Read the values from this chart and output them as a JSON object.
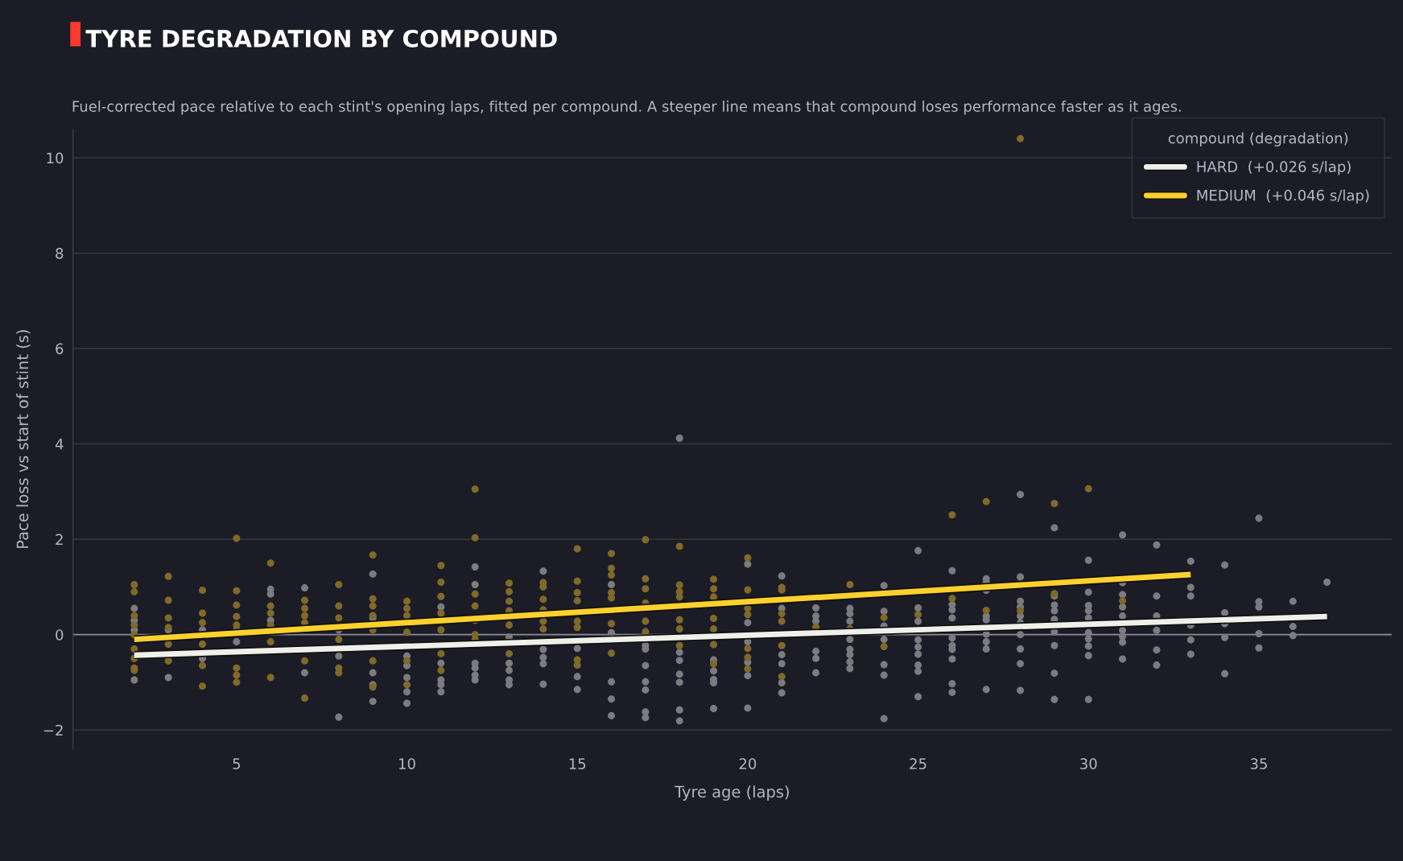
{
  "chart_data": {
    "type": "scatter",
    "title": "TYRE DEGRADATION BY COMPOUND",
    "subtitle": "Fuel-corrected pace relative to each stint's opening laps, fitted per compound. A steeper line means that compound loses performance faster as it ages.",
    "xlabel": "Tyre age (laps)",
    "ylabel": "Pace loss vs start of stint (s)",
    "legend_title": "compound (degradation)",
    "xlim": [
      0.2,
      38.9
    ],
    "ylim": [
      -2.4,
      10.6
    ],
    "xticks": [
      5,
      10,
      15,
      20,
      25,
      30,
      35
    ],
    "yticks": [
      {
        "value": -2,
        "label": "−2"
      },
      0,
      2,
      4,
      6,
      8,
      10
    ],
    "grid": "y",
    "legend": "top right",
    "ref_lines": [
      {
        "axis": "y",
        "value": 0,
        "color": "#8a8a95"
      }
    ],
    "series": [
      {
        "marker": "circle",
        "color": "#7b7b80",
        "x": [
          2,
          2,
          2,
          2,
          3,
          3,
          4,
          4,
          5,
          5,
          6,
          6,
          6,
          7,
          7,
          8,
          8,
          8,
          9,
          9,
          9,
          9,
          9,
          10,
          10,
          10,
          10,
          10,
          11,
          11,
          11,
          11,
          11,
          12,
          12,
          12,
          12,
          12,
          12,
          13,
          13,
          13,
          13,
          13,
          14,
          14,
          14,
          14,
          14,
          15,
          15,
          15,
          16,
          16,
          16,
          16,
          16,
          17,
          17,
          17,
          17,
          17,
          17,
          17,
          18,
          18,
          18,
          18,
          18,
          18,
          18,
          19,
          19,
          19,
          19,
          19,
          20,
          20,
          20,
          20,
          20,
          20,
          21,
          21,
          21,
          21,
          21,
          21,
          22,
          22,
          22,
          22,
          22,
          22,
          23,
          23,
          23,
          23,
          23,
          23,
          23,
          23,
          24,
          24,
          24,
          24,
          24,
          24,
          24,
          25,
          25,
          25,
          25,
          25,
          25,
          25,
          25,
          25,
          26,
          26,
          26,
          26,
          26,
          26,
          26,
          26,
          26,
          26,
          27,
          27,
          27,
          27,
          27,
          27,
          27,
          27,
          27,
          28,
          28,
          28,
          28,
          28,
          28,
          28,
          28,
          28,
          28,
          29,
          29,
          29,
          29,
          29,
          29,
          29,
          29,
          29,
          30,
          30,
          30,
          30,
          30,
          30,
          30,
          30,
          30,
          30,
          31,
          31,
          31,
          31,
          31,
          31,
          31,
          31,
          31,
          32,
          32,
          32,
          32,
          32,
          32,
          33,
          33,
          33,
          33,
          33,
          33,
          34,
          34,
          34,
          34,
          34,
          35,
          35,
          35,
          35,
          35,
          36,
          36,
          36,
          37
        ],
        "values": [
          0.55,
          0.3,
          0.1,
          -0.95,
          0.1,
          -0.9,
          0.1,
          -0.5,
          0.1,
          -0.15,
          0.95,
          0.85,
          0.3,
          0.98,
          -0.8,
          0.1,
          -0.45,
          -1.73,
          1.27,
          0.35,
          -0.8,
          -1.05,
          -1.4,
          -0.45,
          -0.65,
          -0.9,
          -1.2,
          -1.44,
          0.58,
          -0.6,
          -0.95,
          -1.05,
          -1.2,
          1.42,
          1.05,
          -0.6,
          -0.7,
          -0.85,
          -0.95,
          -0.05,
          -0.6,
          -0.75,
          -0.95,
          -1.05,
          1.33,
          -0.31,
          -0.48,
          -0.61,
          -1.04,
          -0.29,
          -0.88,
          -1.15,
          1.05,
          0.04,
          -0.99,
          -1.35,
          -1.7,
          -0.23,
          -0.3,
          -0.65,
          -0.99,
          -1.16,
          -1.62,
          -1.74,
          4.12,
          -0.37,
          -0.54,
          -0.83,
          -1.0,
          -1.58,
          -1.81,
          -0.53,
          -0.76,
          -0.94,
          -1.01,
          -1.55,
          1.48,
          0.25,
          -0.15,
          -0.58,
          -0.86,
          -1.54,
          1.23,
          0.55,
          -0.42,
          -0.61,
          -1.01,
          -1.22,
          0.56,
          0.39,
          0.28,
          -0.35,
          -0.5,
          -0.8,
          0.55,
          0.44,
          0.28,
          -0.1,
          -0.31,
          -0.42,
          -0.57,
          -0.71,
          1.03,
          0.49,
          0.18,
          -0.1,
          -0.63,
          -0.85,
          -1.76,
          1.76,
          0.56,
          0.28,
          -0.11,
          -0.26,
          -0.41,
          -0.64,
          -0.77,
          -1.3,
          1.34,
          0.63,
          0.52,
          0.35,
          -0.07,
          -0.23,
          -0.31,
          -0.51,
          -1.03,
          -1.21,
          1.17,
          1.09,
          0.93,
          0.39,
          0.31,
          0.01,
          -0.15,
          -0.3,
          -1.15,
          2.94,
          1.21,
          0.7,
          0.58,
          0.39,
          0.25,
          0.0,
          -0.3,
          -0.61,
          -1.17,
          2.24,
          0.81,
          0.62,
          0.5,
          0.32,
          0.06,
          -0.23,
          -0.81,
          -1.36,
          1.56,
          0.89,
          0.61,
          0.5,
          0.35,
          0.04,
          -0.09,
          -0.24,
          -0.44,
          -1.36,
          2.09,
          1.09,
          0.84,
          0.58,
          0.39,
          0.09,
          -0.04,
          -0.16,
          -0.51,
          1.88,
          0.81,
          0.39,
          0.09,
          -0.32,
          -0.64,
          1.54,
          0.99,
          0.81,
          0.2,
          -0.11,
          -0.41,
          1.46,
          0.46,
          0.23,
          -0.06,
          -0.82,
          2.44,
          0.69,
          0.58,
          0.02,
          -0.28,
          0.7,
          0.17,
          -0.02,
          1.1
        ]
      },
      {
        "marker": "circle",
        "color": "#7f6a2a",
        "x": [
          2,
          2,
          2,
          2,
          2,
          2,
          2,
          2,
          2,
          3,
          3,
          3,
          3,
          3,
          3,
          4,
          4,
          4,
          4,
          4,
          4,
          5,
          5,
          5,
          5,
          5,
          5,
          5,
          5,
          6,
          6,
          6,
          6,
          6,
          6,
          7,
          7,
          7,
          7,
          7,
          7,
          8,
          8,
          8,
          8,
          8,
          8,
          9,
          9,
          9,
          9,
          9,
          9,
          9,
          10,
          10,
          10,
          10,
          10,
          10,
          11,
          11,
          11,
          11,
          11,
          11,
          11,
          12,
          12,
          12,
          12,
          12,
          12,
          12,
          13,
          13,
          13,
          13,
          13,
          13,
          14,
          14,
          14,
          14,
          14,
          14,
          15,
          15,
          15,
          15,
          15,
          15,
          15,
          15,
          16,
          16,
          16,
          16,
          16,
          16,
          16,
          17,
          17,
          17,
          17,
          17,
          17,
          18,
          18,
          18,
          18,
          18,
          18,
          18,
          19,
          19,
          19,
          19,
          19,
          19,
          19,
          20,
          20,
          20,
          20,
          20,
          20,
          20,
          21,
          21,
          21,
          21,
          21,
          21,
          22,
          23,
          23,
          24,
          24,
          25,
          26,
          26,
          27,
          27,
          28,
          28,
          29,
          29,
          30,
          31
        ],
        "values": [
          1.05,
          0.9,
          0.4,
          0.2,
          0.0,
          -0.3,
          -0.5,
          -0.7,
          -0.75,
          1.22,
          0.72,
          0.35,
          0.15,
          -0.2,
          -0.55,
          0.93,
          0.45,
          0.25,
          -0.2,
          -0.65,
          -1.08,
          2.02,
          0.92,
          0.62,
          0.38,
          0.2,
          -0.7,
          -0.85,
          -1.0,
          1.5,
          0.6,
          0.45,
          0.2,
          -0.15,
          -0.9,
          0.72,
          0.55,
          0.4,
          0.25,
          -0.55,
          -1.33,
          1.05,
          0.6,
          0.35,
          -0.1,
          -0.7,
          -0.8,
          1.67,
          0.75,
          0.6,
          0.4,
          0.1,
          -0.55,
          -1.1,
          0.7,
          0.55,
          0.4,
          0.05,
          -0.55,
          -1.05,
          1.45,
          1.1,
          0.8,
          0.45,
          0.1,
          -0.4,
          -0.75,
          3.05,
          2.03,
          0.85,
          0.6,
          0.3,
          0.0,
          -0.1,
          1.08,
          0.9,
          0.7,
          0.5,
          0.2,
          -0.4,
          1.09,
          1.0,
          0.74,
          0.52,
          0.28,
          0.12,
          1.8,
          1.12,
          0.88,
          0.71,
          0.28,
          0.15,
          -0.53,
          -0.64,
          1.7,
          1.39,
          1.25,
          0.88,
          0.77,
          0.23,
          -0.39,
          1.99,
          1.17,
          0.96,
          0.66,
          0.28,
          0.06,
          1.85,
          1.04,
          0.9,
          0.79,
          0.31,
          0.12,
          -0.23,
          1.16,
          0.96,
          0.79,
          0.34,
          0.12,
          -0.21,
          -0.61,
          1.61,
          0.94,
          0.55,
          0.42,
          -0.29,
          -0.48,
          -0.72,
          0.99,
          0.94,
          0.44,
          0.28,
          -0.23,
          -0.88,
          0.16,
          1.05,
          0.12,
          0.36,
          -0.25,
          0.42,
          2.51,
          0.76,
          2.79,
          0.51,
          10.4,
          0.5,
          2.75,
          0.86,
          3.06,
          0.71
        ]
      },
      {
        "type": "line",
        "name": "HARD  (+0.026 s/lap)",
        "color": "#f0f0ea",
        "x": [
          2,
          37
        ],
        "values": [
          -0.43,
          0.38
        ]
      },
      {
        "type": "line",
        "name": "MEDIUM  (+0.046 s/lap)",
        "color": "#ffd12e",
        "x": [
          2,
          33
        ],
        "values": [
          -0.1,
          1.26
        ]
      }
    ]
  }
}
